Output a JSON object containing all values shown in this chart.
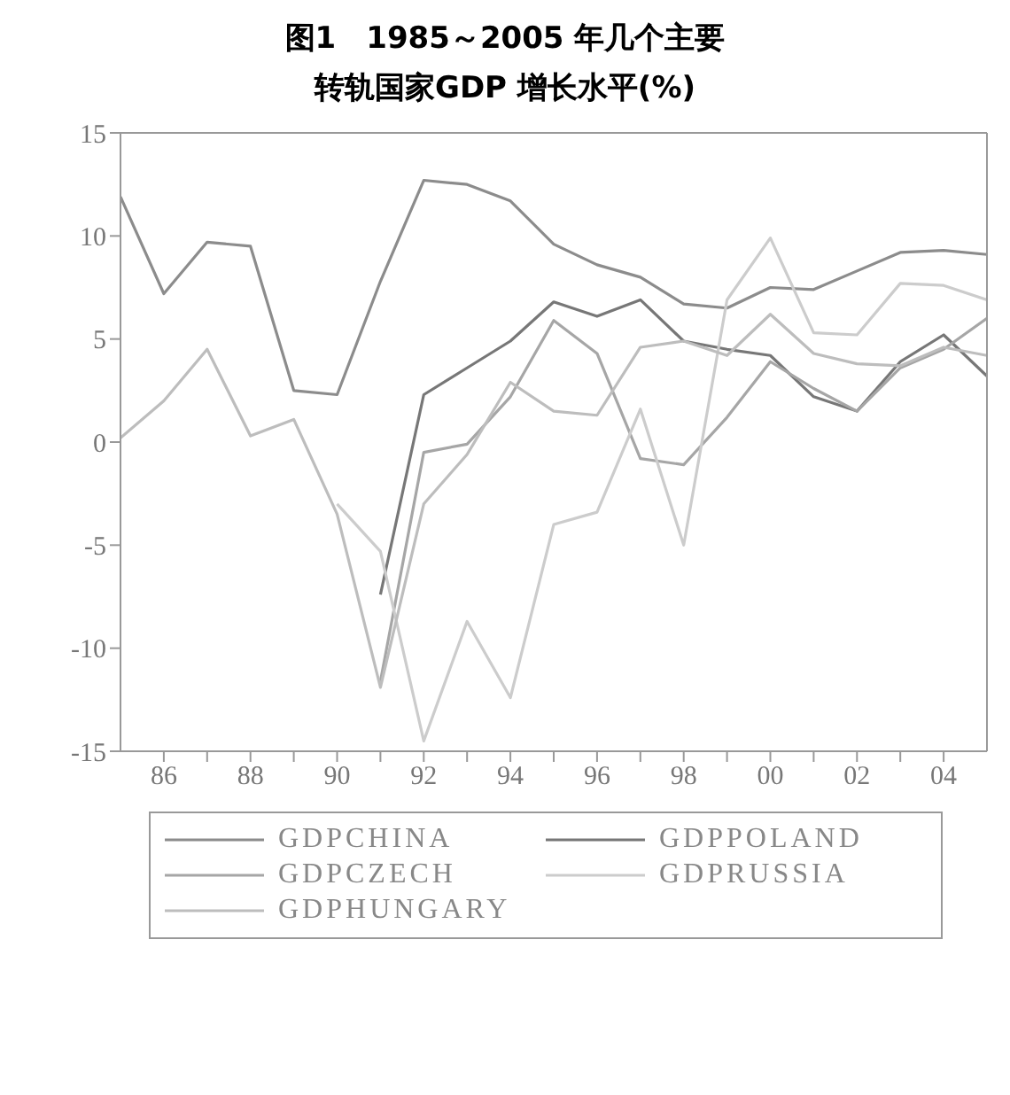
{
  "chart_data": {
    "type": "line",
    "title": "图1　1985～2005 年几个主要转轨国家GDP 增长水平(%)",
    "x": [
      1985,
      1986,
      1987,
      1988,
      1989,
      1990,
      1991,
      1992,
      1993,
      1994,
      1995,
      1996,
      1997,
      1998,
      1999,
      2000,
      2001,
      2002,
      2003,
      2004,
      2005
    ],
    "series": [
      {
        "name": "GDPCHINA",
        "color": "#8c8c8c",
        "values": [
          11.9,
          7.2,
          9.7,
          9.5,
          2.5,
          2.3,
          7.8,
          12.7,
          12.5,
          11.7,
          9.6,
          8.6,
          8.0,
          6.7,
          6.5,
          7.5,
          7.4,
          8.3,
          9.2,
          9.3,
          9.1
        ]
      },
      {
        "name": "GDPPOLAND",
        "color": "#777777",
        "values": [
          null,
          null,
          null,
          null,
          null,
          null,
          -7.4,
          2.3,
          3.6,
          4.9,
          6.8,
          6.1,
          6.9,
          4.9,
          4.5,
          4.2,
          2.2,
          1.5,
          3.9,
          5.2,
          3.2
        ]
      },
      {
        "name": "GDPCZECH",
        "color": "#a6a6a6",
        "values": [
          null,
          null,
          null,
          null,
          null,
          null,
          -11.6,
          -0.5,
          -0.1,
          2.2,
          5.9,
          4.3,
          -0.8,
          -1.1,
          1.2,
          3.9,
          2.6,
          1.5,
          3.6,
          4.5,
          6.0
        ]
      },
      {
        "name": "GDPRUSSIA",
        "color": "#cccccc",
        "values": [
          null,
          null,
          null,
          null,
          null,
          -3.0,
          -5.3,
          -14.5,
          -8.7,
          -12.4,
          -4.0,
          -3.4,
          1.6,
          -5.0,
          6.9,
          9.9,
          5.3,
          5.2,
          7.7,
          7.6,
          6.9
        ]
      },
      {
        "name": "GDPHUNGARY",
        "color": "#bdbdbd",
        "values": [
          0.2,
          2.0,
          4.5,
          0.3,
          1.1,
          -3.5,
          -11.9,
          -3.0,
          -0.6,
          2.9,
          1.5,
          1.3,
          4.6,
          4.9,
          4.2,
          6.2,
          4.3,
          3.8,
          3.7,
          4.6,
          4.2
        ]
      }
    ],
    "xlim": [
      1985,
      2005
    ],
    "xticks": [
      {
        "value": 1986,
        "label": "86"
      },
      {
        "value": 1987,
        "label": null
      },
      {
        "value": 1988,
        "label": "88"
      },
      {
        "value": 1989,
        "label": null
      },
      {
        "value": 1990,
        "label": "90"
      },
      {
        "value": 1991,
        "label": null
      },
      {
        "value": 1992,
        "label": "92"
      },
      {
        "value": 1993,
        "label": null
      },
      {
        "value": 1994,
        "label": "94"
      },
      {
        "value": 1995,
        "label": null
      },
      {
        "value": 1996,
        "label": "96"
      },
      {
        "value": 1997,
        "label": null
      },
      {
        "value": 1998,
        "label": "98"
      },
      {
        "value": 1999,
        "label": null
      },
      {
        "value": 2000,
        "label": "00"
      },
      {
        "value": 2001,
        "label": null
      },
      {
        "value": 2002,
        "label": "02"
      },
      {
        "value": 2003,
        "label": null
      },
      {
        "value": 2004,
        "label": "04"
      }
    ],
    "ylim": [
      -15,
      15
    ],
    "yticks": [
      -15,
      -10,
      -5,
      0,
      5,
      10,
      15
    ],
    "grid": false,
    "legend": "bottom",
    "marker": "none",
    "line_style": "solid"
  }
}
